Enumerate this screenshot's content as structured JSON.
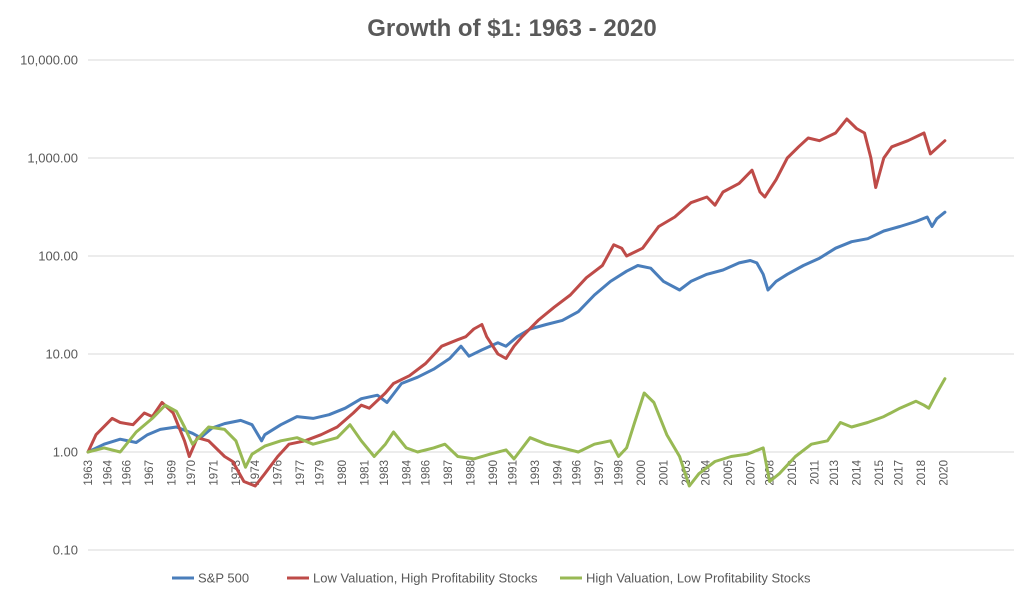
{
  "chart_data": {
    "type": "line",
    "title": "Growth of $1: 1963 - 2020",
    "xlabel": "",
    "ylabel": "",
    "y_scale": "log",
    "ylim": [
      0.1,
      10000
    ],
    "xlim": [
      1963,
      2020.6
    ],
    "grid": "horizontal",
    "legend_position": "bottom",
    "y_ticks": [
      {
        "value": 10000,
        "label": "10,000.00"
      },
      {
        "value": 1000,
        "label": "1,000.00"
      },
      {
        "value": 100,
        "label": "100.00"
      },
      {
        "value": 10,
        "label": "10.00"
      },
      {
        "value": 1,
        "label": "1.00"
      },
      {
        "value": 0.1,
        "label": "0.10"
      }
    ],
    "x_ticks": [
      {
        "value": 1963.0,
        "label": "1963"
      },
      {
        "value": 1964.2,
        "label": "1964"
      },
      {
        "value": 1965.4,
        "label": "1966"
      },
      {
        "value": 1966.8,
        "label": "1967"
      },
      {
        "value": 1968.2,
        "label": "1969"
      },
      {
        "value": 1969.4,
        "label": "1970"
      },
      {
        "value": 1970.8,
        "label": "1971"
      },
      {
        "value": 1972.2,
        "label": "1973"
      },
      {
        "value": 1973.4,
        "label": "1974"
      },
      {
        "value": 1974.8,
        "label": "1976"
      },
      {
        "value": 1976.2,
        "label": "1977"
      },
      {
        "value": 1977.4,
        "label": "1979"
      },
      {
        "value": 1978.8,
        "label": "1980"
      },
      {
        "value": 1980.2,
        "label": "1981"
      },
      {
        "value": 1981.4,
        "label": "1983"
      },
      {
        "value": 1982.8,
        "label": "1984"
      },
      {
        "value": 1984.0,
        "label": "1986"
      },
      {
        "value": 1985.4,
        "label": "1987"
      },
      {
        "value": 1986.8,
        "label": "1988"
      },
      {
        "value": 1988.2,
        "label": "1990"
      },
      {
        "value": 1989.4,
        "label": "1991"
      },
      {
        "value": 1990.8,
        "label": "1993"
      },
      {
        "value": 1992.2,
        "label": "1994"
      },
      {
        "value": 1993.4,
        "label": "1996"
      },
      {
        "value": 1994.8,
        "label": "1997"
      },
      {
        "value": 1996.0,
        "label": "1998"
      },
      {
        "value": 1997.4,
        "label": "2000"
      },
      {
        "value": 1998.8,
        "label": "2001"
      },
      {
        "value": 2000.2,
        "label": "2003"
      },
      {
        "value": 2001.4,
        "label": "2004"
      },
      {
        "value": 2002.8,
        "label": "2005"
      },
      {
        "value": 2004.2,
        "label": "2007"
      },
      {
        "value": 2005.4,
        "label": "2008"
      },
      {
        "value": 2006.8,
        "label": "2010"
      },
      {
        "value": 2008.2,
        "label": "2011"
      },
      {
        "value": 2009.4,
        "label": "2013"
      },
      {
        "value": 2010.8,
        "label": "2014"
      },
      {
        "value": 2012.2,
        "label": "2015"
      },
      {
        "value": 2013.4,
        "label": "2017"
      },
      {
        "value": 2014.8,
        "label": "2018"
      },
      {
        "value": 2016.2,
        "label": "2020"
      }
    ],
    "series": [
      {
        "name": "S&P 500",
        "color": "#4a7ebb",
        "points": [
          [
            1963.0,
            1.0
          ],
          [
            1964.0,
            1.2
          ],
          [
            1965.0,
            1.35
          ],
          [
            1966.0,
            1.25
          ],
          [
            1966.7,
            1.5
          ],
          [
            1967.5,
            1.7
          ],
          [
            1968.5,
            1.8
          ],
          [
            1969.5,
            1.55
          ],
          [
            1970.0,
            1.4
          ],
          [
            1970.7,
            1.75
          ],
          [
            1971.5,
            1.95
          ],
          [
            1972.5,
            2.1
          ],
          [
            1973.2,
            1.9
          ],
          [
            1973.8,
            1.3
          ],
          [
            1974.0,
            1.5
          ],
          [
            1975.0,
            1.9
          ],
          [
            1976.0,
            2.3
          ],
          [
            1977.0,
            2.2
          ],
          [
            1978.0,
            2.4
          ],
          [
            1979.0,
            2.8
          ],
          [
            1980.0,
            3.5
          ],
          [
            1981.0,
            3.8
          ],
          [
            1981.6,
            3.2
          ],
          [
            1982.5,
            5.0
          ],
          [
            1983.5,
            5.8
          ],
          [
            1984.5,
            7.0
          ],
          [
            1985.5,
            9.0
          ],
          [
            1986.2,
            12.0
          ],
          [
            1986.7,
            9.5
          ],
          [
            1987.5,
            11.0
          ],
          [
            1988.5,
            13.0
          ],
          [
            1989.0,
            12.0
          ],
          [
            1989.7,
            15.0
          ],
          [
            1990.5,
            18.0
          ],
          [
            1991.5,
            20.0
          ],
          [
            1992.5,
            22.0
          ],
          [
            1993.5,
            27.0
          ],
          [
            1994.5,
            40.0
          ],
          [
            1995.5,
            55.0
          ],
          [
            1996.5,
            70.0
          ],
          [
            1997.2,
            80.0
          ],
          [
            1998.0,
            75.0
          ],
          [
            1998.8,
            55.0
          ],
          [
            1999.8,
            45.0
          ],
          [
            2000.5,
            55.0
          ],
          [
            2001.5,
            65.0
          ],
          [
            2002.5,
            72.0
          ],
          [
            2003.5,
            85.0
          ],
          [
            2004.2,
            90.0
          ],
          [
            2004.6,
            85.0
          ],
          [
            2005.0,
            65.0
          ],
          [
            2005.3,
            45.0
          ],
          [
            2005.8,
            55.0
          ],
          [
            2006.5,
            65.0
          ],
          [
            2007.5,
            80.0
          ],
          [
            2008.5,
            95.0
          ],
          [
            2009.5,
            120.0
          ],
          [
            2010.5,
            140.0
          ],
          [
            2011.5,
            150.0
          ],
          [
            2012.5,
            180.0
          ],
          [
            2013.5,
            200.0
          ],
          [
            2014.5,
            225.0
          ],
          [
            2015.2,
            250.0
          ],
          [
            2015.5,
            200.0
          ],
          [
            2015.8,
            240.0
          ],
          [
            2016.3,
            280.0
          ]
        ]
      },
      {
        "name": "Low Valuation, High Profitability Stocks",
        "color": "#be4b48",
        "points": [
          [
            1963.0,
            1.0
          ],
          [
            1963.5,
            1.5
          ],
          [
            1964.5,
            2.2
          ],
          [
            1965.0,
            2.0
          ],
          [
            1965.8,
            1.9
          ],
          [
            1966.5,
            2.5
          ],
          [
            1967.0,
            2.3
          ],
          [
            1967.6,
            3.2
          ],
          [
            1968.3,
            2.5
          ],
          [
            1969.0,
            1.3
          ],
          [
            1969.3,
            0.9
          ],
          [
            1969.8,
            1.4
          ],
          [
            1970.5,
            1.3
          ],
          [
            1971.5,
            0.9
          ],
          [
            1972.0,
            0.8
          ],
          [
            1972.7,
            0.5
          ],
          [
            1973.4,
            0.45
          ],
          [
            1974.0,
            0.6
          ],
          [
            1974.8,
            0.9
          ],
          [
            1975.5,
            1.2
          ],
          [
            1976.5,
            1.3
          ],
          [
            1977.5,
            1.5
          ],
          [
            1978.5,
            1.8
          ],
          [
            1979.5,
            2.5
          ],
          [
            1980.0,
            3.0
          ],
          [
            1980.5,
            2.8
          ],
          [
            1981.5,
            4.0
          ],
          [
            1982.0,
            5.0
          ],
          [
            1983.0,
            6.0
          ],
          [
            1984.0,
            8.0
          ],
          [
            1985.0,
            12.0
          ],
          [
            1986.0,
            14.0
          ],
          [
            1986.5,
            15.0
          ],
          [
            1987.0,
            18.0
          ],
          [
            1987.5,
            20.0
          ],
          [
            1987.8,
            15.0
          ],
          [
            1988.5,
            10.0
          ],
          [
            1989.0,
            9.0
          ],
          [
            1989.5,
            12.0
          ],
          [
            1990.0,
            15.0
          ],
          [
            1991.0,
            22.0
          ],
          [
            1992.0,
            30.0
          ],
          [
            1993.0,
            40.0
          ],
          [
            1994.0,
            60.0
          ],
          [
            1995.0,
            80.0
          ],
          [
            1995.7,
            130.0
          ],
          [
            1996.2,
            120.0
          ],
          [
            1996.5,
            100.0
          ],
          [
            1997.5,
            120.0
          ],
          [
            1998.5,
            200.0
          ],
          [
            1999.5,
            250.0
          ],
          [
            2000.5,
            350.0
          ],
          [
            2001.5,
            400.0
          ],
          [
            2002.0,
            330.0
          ],
          [
            2002.5,
            450.0
          ],
          [
            2003.5,
            550.0
          ],
          [
            2004.3,
            750.0
          ],
          [
            2004.8,
            450.0
          ],
          [
            2005.1,
            400.0
          ],
          [
            2005.8,
            600.0
          ],
          [
            2006.5,
            1000.0
          ],
          [
            2007.2,
            1300.0
          ],
          [
            2007.8,
            1600.0
          ],
          [
            2008.5,
            1500.0
          ],
          [
            2009.5,
            1800.0
          ],
          [
            2010.2,
            2500.0
          ],
          [
            2010.8,
            2000.0
          ],
          [
            2011.3,
            1800.0
          ],
          [
            2011.7,
            1000.0
          ],
          [
            2012.0,
            500.0
          ],
          [
            2012.5,
            1000.0
          ],
          [
            2013.0,
            1300.0
          ],
          [
            2014.0,
            1500.0
          ],
          [
            2015.0,
            1800.0
          ],
          [
            2015.4,
            1100.0
          ],
          [
            2016.3,
            1500.0
          ]
        ]
      },
      {
        "name": "High Valuation, Low Profitability Stocks",
        "color": "#98b954",
        "points": [
          [
            1963.0,
            1.0
          ],
          [
            1964.0,
            1.1
          ],
          [
            1965.0,
            1.0
          ],
          [
            1966.0,
            1.6
          ],
          [
            1967.0,
            2.2
          ],
          [
            1967.8,
            3.0
          ],
          [
            1968.5,
            2.6
          ],
          [
            1969.0,
            1.8
          ],
          [
            1969.5,
            1.2
          ],
          [
            1970.5,
            1.8
          ],
          [
            1971.5,
            1.7
          ],
          [
            1972.2,
            1.3
          ],
          [
            1972.8,
            0.7
          ],
          [
            1973.2,
            0.95
          ],
          [
            1974.0,
            1.15
          ],
          [
            1975.0,
            1.3
          ],
          [
            1976.0,
            1.4
          ],
          [
            1977.0,
            1.2
          ],
          [
            1978.5,
            1.4
          ],
          [
            1979.3,
            1.9
          ],
          [
            1980.0,
            1.3
          ],
          [
            1980.8,
            0.9
          ],
          [
            1981.5,
            1.2
          ],
          [
            1982.0,
            1.6
          ],
          [
            1982.8,
            1.1
          ],
          [
            1983.5,
            1.0
          ],
          [
            1984.5,
            1.1
          ],
          [
            1985.2,
            1.2
          ],
          [
            1986.0,
            0.9
          ],
          [
            1987.0,
            0.85
          ],
          [
            1988.0,
            0.95
          ],
          [
            1989.0,
            1.05
          ],
          [
            1989.5,
            0.85
          ],
          [
            1990.5,
            1.4
          ],
          [
            1991.5,
            1.2
          ],
          [
            1992.5,
            1.1
          ],
          [
            1993.5,
            1.0
          ],
          [
            1994.5,
            1.2
          ],
          [
            1995.5,
            1.3
          ],
          [
            1996.0,
            0.9
          ],
          [
            1996.5,
            1.1
          ],
          [
            1997.0,
            2.0
          ],
          [
            1997.6,
            4.0
          ],
          [
            1998.2,
            3.2
          ],
          [
            1999.0,
            1.5
          ],
          [
            1999.8,
            0.9
          ],
          [
            2000.4,
            0.45
          ],
          [
            2001.0,
            0.6
          ],
          [
            2002.0,
            0.8
          ],
          [
            2003.0,
            0.9
          ],
          [
            2004.0,
            0.95
          ],
          [
            2005.0,
            1.1
          ],
          [
            2005.4,
            0.5
          ],
          [
            2006.0,
            0.6
          ],
          [
            2007.0,
            0.9
          ],
          [
            2008.0,
            1.2
          ],
          [
            2009.0,
            1.3
          ],
          [
            2009.8,
            2.0
          ],
          [
            2010.5,
            1.8
          ],
          [
            2011.5,
            2.0
          ],
          [
            2012.5,
            2.3
          ],
          [
            2013.5,
            2.8
          ],
          [
            2014.5,
            3.3
          ],
          [
            2015.0,
            3.0
          ],
          [
            2015.3,
            2.8
          ],
          [
            2015.8,
            4.0
          ],
          [
            2016.3,
            5.6
          ]
        ]
      }
    ]
  }
}
